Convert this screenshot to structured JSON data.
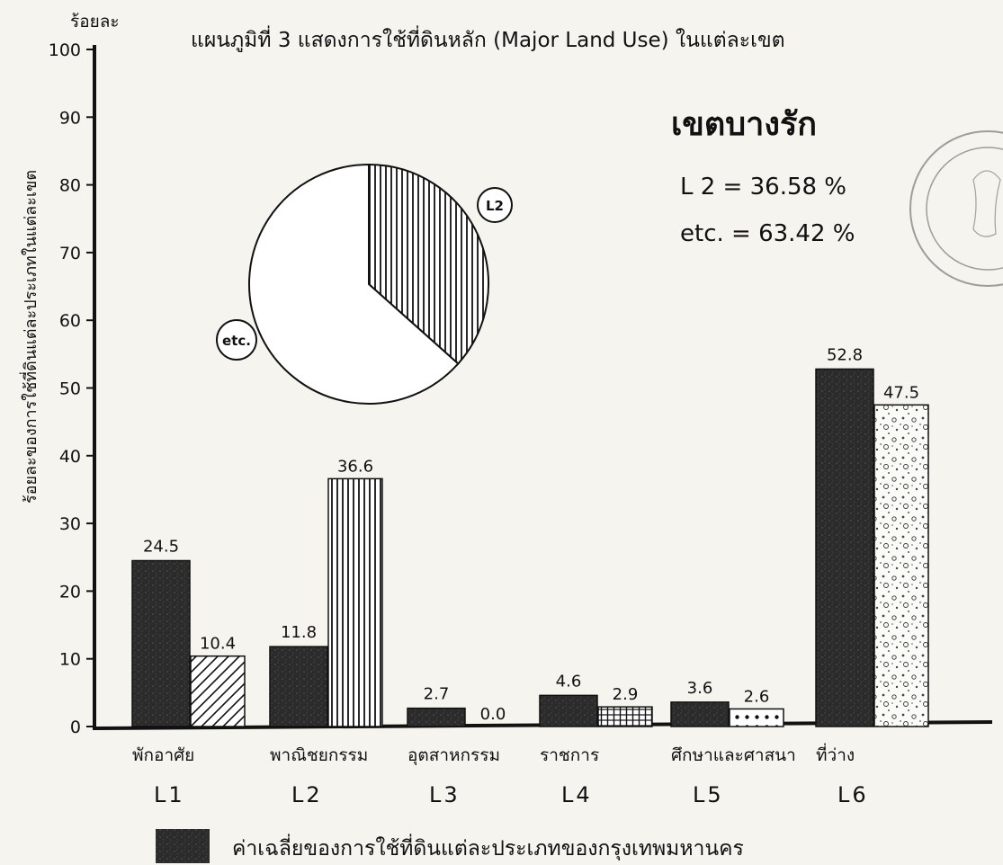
{
  "chart_data": {
    "type": "bar",
    "title": "แผนภูมิที่   3  แสดงการใช้ที่ดินหลัก (Major Land Use) ในแต่ละเขต",
    "y_unit_label": "ร้อยละ",
    "ylabel": "ร้อยละของการใช้ที่ดินแต่ละประเภทในแต่ละเขต",
    "ylim": [
      0,
      100
    ],
    "yticks": [
      "0",
      "10",
      "20",
      "30",
      "40",
      "50",
      "60",
      "70",
      "80",
      "90",
      "100"
    ],
    "categories": [
      "พักอาศัย",
      "พาณิชยกรรม",
      "อุตสาหกรรม",
      "ราชการ",
      "ศึกษาและศาสนา",
      "ที่ว่าง"
    ],
    "category_codes": [
      "L1",
      "L2",
      "L3",
      "L4",
      "L5",
      "L6"
    ],
    "series": [
      {
        "name": "ค่าเฉลี่ยของการใช้ที่ดินแต่ละประเภทของกรุงเทพมหานคร",
        "values": [
          24.5,
          11.8,
          2.7,
          4.6,
          3.6,
          52.8
        ],
        "labels": [
          "24.5",
          "11.8",
          "2.7",
          "4.6",
          "3.6",
          "52.8"
        ],
        "pattern": "dark-solid",
        "color": "#2a2a2a"
      },
      {
        "values": [
          10.4,
          36.6,
          0.0,
          2.9,
          2.6,
          47.5
        ],
        "labels": [
          "10.4",
          "36.6",
          "0.0",
          "2.9",
          "2.6",
          "47.5"
        ],
        "patterns": [
          "diagonal",
          "vertical",
          "none",
          "grid",
          "dots",
          "speckle"
        ]
      }
    ],
    "grid": false,
    "legend_position": "bottom"
  },
  "inset": {
    "district_name": "เขตบางรัก",
    "lines": [
      "L 2  =  36.58 %",
      "etc.  =  63.42 %"
    ],
    "pie": {
      "slices": [
        {
          "label": "L2",
          "value": 36.58,
          "pattern": "vertical"
        },
        {
          "label": "etc.",
          "value": 63.42,
          "pattern": "none"
        }
      ]
    }
  },
  "colors": {
    "background": "#f5f4ef",
    "ink": "#111111",
    "dark_bar": "#2a2a2a"
  }
}
